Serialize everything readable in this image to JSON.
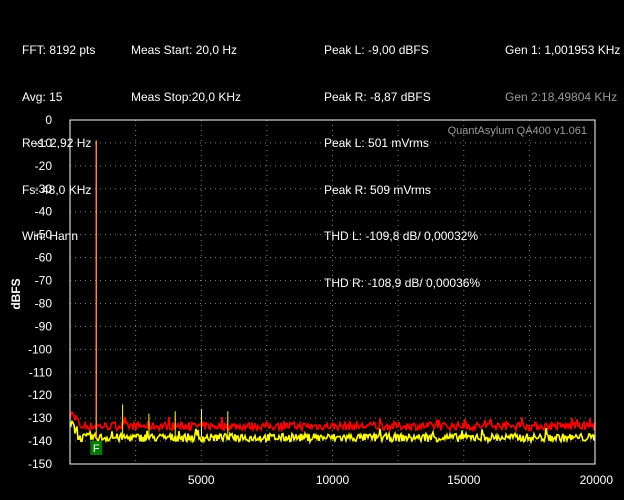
{
  "info": {
    "col1": [
      "FFT: 8192 pts",
      "Avg: 15",
      "Res: 2,92 Hz",
      "Fs: 48,0 KHz",
      "Win: Hann"
    ],
    "col2": [
      "Meas Start: 20,0 Hz",
      "Meas Stop:20,0 KHz"
    ],
    "col3": [
      "Peak L: -9,00 dBFS",
      "Peak R: -8,87 dBFS",
      "Peak L: 501 mVrms",
      "Peak R: 509 mVrms",
      "THD L: -109,8 dB/ 0,00032%",
      "THD R: -108,9 dB/ 0,00036%"
    ],
    "gen1": "Gen 1: 1,001953 KHz",
    "gen2": "Gen 2:18,49804 KHz"
  },
  "watermark": "QuantAsylum QA400 v1.061",
  "marker": "F",
  "colors": {
    "background": "#000000",
    "plot_border": "#ffffff",
    "grid": "#808080",
    "left_channel": "#ff0000",
    "right_channel": "#ffff00",
    "fundamental_spike": "#ff8c00",
    "marker": "#007a00",
    "watermark": "#9a9a9a",
    "gen2_text": "#9a9a9a"
  },
  "chart_data": {
    "type": "line",
    "title": "",
    "xlabel": "",
    "ylabel": "dBFS",
    "xlim": [
      0,
      20000
    ],
    "ylim": [
      -150,
      0
    ],
    "x_ticks": [
      5000,
      10000,
      15000,
      20000
    ],
    "y_ticks": [
      0,
      -10,
      -20,
      -30,
      -40,
      -50,
      -60,
      -70,
      -80,
      -90,
      -100,
      -110,
      -120,
      -130,
      -140,
      -150
    ],
    "grid": true,
    "fundamental": {
      "x": 1001.953,
      "y": -9.0
    },
    "marker_x": 1001.953,
    "series": [
      {
        "color_key": "left_channel",
        "noise_floor_db": -133.5,
        "jitter_db": 1.8,
        "spikes": [
          {
            "x": 1001.953,
            "y": -9.0
          },
          {
            "x": 2003.9,
            "y": -127
          },
          {
            "x": 3005.9,
            "y": -130
          },
          {
            "x": 4007.8,
            "y": -129
          },
          {
            "x": 5009.8,
            "y": -128
          },
          {
            "x": 6011.7,
            "y": -129
          }
        ]
      },
      {
        "color_key": "right_channel",
        "noise_floor_db": -138.5,
        "jitter_db": 1.8,
        "spikes": [
          {
            "x": 1001.953,
            "y": -8.87
          },
          {
            "x": 2003.9,
            "y": -124
          },
          {
            "x": 3005.9,
            "y": -128
          },
          {
            "x": 4007.8,
            "y": -127
          },
          {
            "x": 5009.8,
            "y": -126
          },
          {
            "x": 6011.7,
            "y": -127
          }
        ]
      }
    ]
  }
}
